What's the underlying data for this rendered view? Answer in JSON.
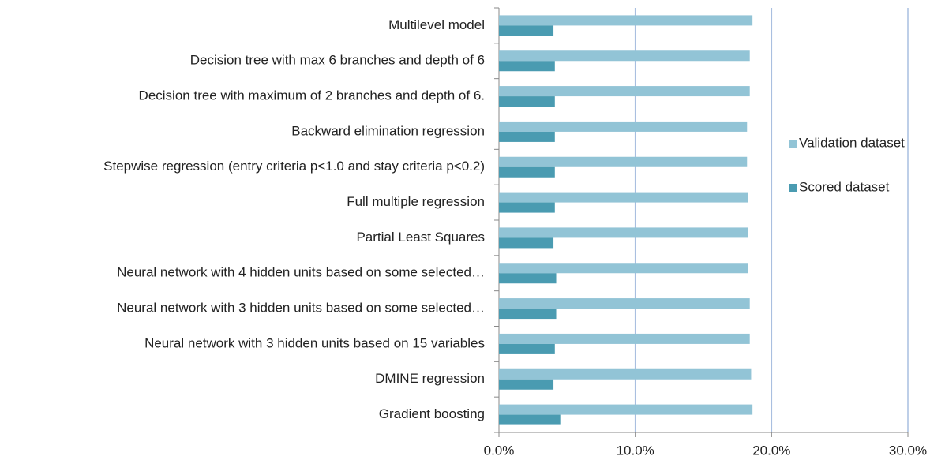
{
  "chart_data": {
    "type": "hbar",
    "categories": [
      "Multilevel model",
      "Decision tree with max 6 branches and depth of 6",
      "Decision tree with maximum of 2 branches and depth of 6.",
      "Backward elimination regression",
      "Stepwise regression (entry criteria p<1.0 and stay criteria p<0.2)",
      "Full multiple regression",
      "Partial Least Squares",
      "Neural network with 4 hidden units based on some selected…",
      "Neural network with 3 hidden units based on some selected…",
      "Neural network with 3 hidden units based on 15 variables",
      "DMINE regression",
      "Gradient boosting"
    ],
    "series": [
      {
        "name": "Validation dataset",
        "color": "#92c4d6",
        "values": [
          18.6,
          18.4,
          18.4,
          18.2,
          18.2,
          18.3,
          18.3,
          18.3,
          18.4,
          18.4,
          18.5,
          18.6
        ]
      },
      {
        "name": "Scored dataset",
        "color": "#4a9bb1",
        "values": [
          4.0,
          4.1,
          4.1,
          4.1,
          4.1,
          4.1,
          4.0,
          4.2,
          4.2,
          4.1,
          4.0,
          4.5
        ]
      }
    ],
    "xlim": [
      0,
      30
    ],
    "xticks": [
      {
        "value": 0,
        "label": "0.0%"
      },
      {
        "value": 10,
        "label": "10.0%"
      },
      {
        "value": 20,
        "label": "20.0%"
      },
      {
        "value": 30,
        "label": "30.0%"
      }
    ],
    "grid": true
  }
}
